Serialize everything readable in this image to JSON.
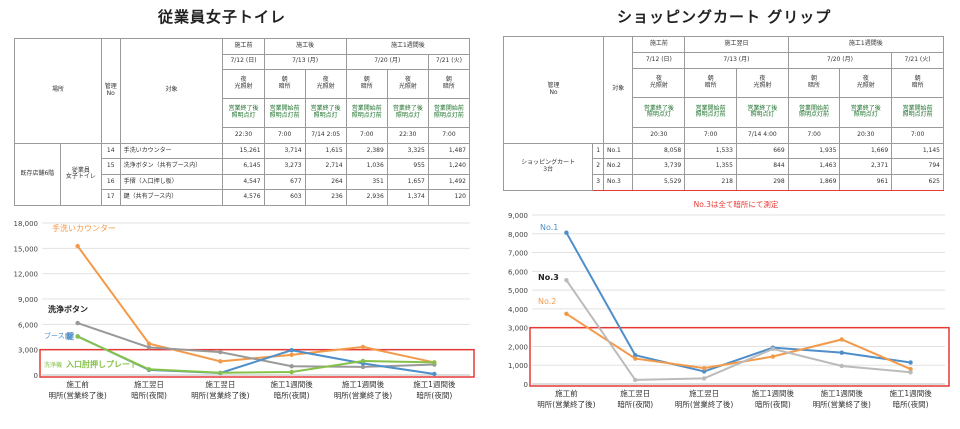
{
  "left": {
    "title": "従業員女子トイレ",
    "table": {
      "h_place": "場所",
      "h_no": "管理\nNo",
      "h_target": "対象",
      "periods": [
        "施工前",
        "施工後",
        "施工1週間後"
      ],
      "dates": [
        "7/12 (日)",
        "7/13 (月)",
        "7/20 (月)",
        "7/21 (火)"
      ],
      "conditions": [
        "夜\n光照射",
        "朝\n暗所",
        "夜\n光照射",
        "朝\n暗所",
        "夜\n光照射",
        "朝\n暗所"
      ],
      "timings": [
        "営業終了後\n照明点灯",
        "営業開始前\n照明点灯前",
        "営業終了後\n照明点灯",
        "営業開始前\n照明点灯前",
        "営業終了後\n照明点灯",
        "営業開始前\n照明点灯前"
      ],
      "times": [
        "22:30",
        "7:00",
        "7/14 2:05",
        "7:00",
        "22:30",
        "7:00"
      ],
      "group_label": "既存店舗6階",
      "sub_label": "従業員\n女子トイレ",
      "rows": [
        {
          "no": "14",
          "target": "手洗いカウンター",
          "values": [
            "15,261",
            "3,714",
            "1,615",
            "2,389",
            "3,325",
            "1,487"
          ]
        },
        {
          "no": "15",
          "target": "洗浄ボタン（共有ブース内）",
          "values": [
            "6,145",
            "3,273",
            "2,714",
            "1,036",
            "955",
            "1,240"
          ]
        },
        {
          "no": "16",
          "target": "手摺（入口押し板）",
          "values": [
            "4,547",
            "677",
            "264",
            "351",
            "1,657",
            "1,492"
          ]
        },
        {
          "no": "17",
          "target": "鍵（共有ブース内）",
          "values": [
            "4,576",
            "603",
            "236",
            "2,936",
            "1,374",
            "120"
          ]
        }
      ]
    }
  },
  "right": {
    "title": "ショッピングカート グリップ",
    "table": {
      "h_no": "管理\nNo",
      "h_target": "対象",
      "periods": [
        "施工前",
        "施工翌日",
        "施工1週間後"
      ],
      "dates": [
        "7/12 (日)",
        "7/13 (月)",
        "7/20 (月)",
        "7/21 (火)"
      ],
      "conditions": [
        "夜\n光照射",
        "朝\n暗所",
        "夜\n光照射",
        "朝\n暗所",
        "夜\n光照射",
        "朝\n暗所"
      ],
      "timings": [
        "営業終了後\n照明点灯",
        "営業開始前\n照明点灯前",
        "営業終了後\n照明点灯",
        "営業開始前\n照明点灯前",
        "営業終了後\n照明点灯",
        "営業開始前\n照明点灯前"
      ],
      "times": [
        "20:30",
        "7:00",
        "7/14 4:00",
        "7:00",
        "20:30",
        "7:00"
      ],
      "group_label": "ショッピングカート\n3台",
      "rows": [
        {
          "no": "1",
          "target": "No.1",
          "values": [
            "8,058",
            "1,533",
            "669",
            "1,935",
            "1,669",
            "1,145"
          ]
        },
        {
          "no": "2",
          "target": "No.2",
          "values": [
            "3,739",
            "1,355",
            "844",
            "1,463",
            "2,371",
            "794"
          ]
        },
        {
          "no": "3",
          "target": "No.3",
          "values": [
            "5,529",
            "218",
            "298",
            "1,869",
            "961",
            "625"
          ]
        }
      ]
    }
  },
  "chart_data": [
    {
      "type": "line",
      "categories": [
        "施工前\n明所(営業終了後)",
        "施工翌日\n暗所(夜間)",
        "施工翌日\n明所(営業終了後)",
        "施工1週間後\n暗所(夜間)",
        "施工1週間後\n明所(営業終了後)",
        "施工1週間後\n暗所(夜間)"
      ],
      "ylim": [
        0,
        18000
      ],
      "yticks": [
        "0",
        "3,000",
        "6,000",
        "9,000",
        "12,000",
        "15,000",
        "18,000"
      ],
      "series": [
        {
          "name": "手洗いカウンター",
          "color": "#f39a4a",
          "values": [
            15261,
            3714,
            1615,
            2389,
            3325,
            1487
          ]
        },
        {
          "name": "洗浄ボタン",
          "color": "#999999",
          "values": [
            6145,
            3273,
            2714,
            1036,
            955,
            1240
          ]
        },
        {
          "name": "ブース内 鍵",
          "color": "#4f8fc9",
          "values": [
            4576,
            603,
            236,
            2936,
            1374,
            120
          ]
        },
        {
          "name": "入口肘押しプレート",
          "color": "#86c24a",
          "values": [
            4547,
            677,
            264,
            351,
            1657,
            1492
          ]
        }
      ],
      "band": {
        "from": 0,
        "to": 3000,
        "color": "#e53935"
      },
      "label_prefix_green": "洗浄機"
    },
    {
      "type": "line",
      "categories": [
        "施工前\n明所(営業終了後)",
        "施工翌日\n暗所(夜間)",
        "施工翌日\n明所(営業終了後)",
        "施工1週間後\n暗所(夜間)",
        "施工1週間後\n明所(営業終了後)",
        "施工1週間後\n暗所(夜間)"
      ],
      "ylim": [
        0,
        9000
      ],
      "yticks": [
        "0",
        "1,000",
        "2,000",
        "3,000",
        "4,000",
        "5,000",
        "6,000",
        "7,000",
        "8,000",
        "9,000"
      ],
      "series": [
        {
          "name": "No.1",
          "color": "#4f8fc9",
          "values": [
            8058,
            1533,
            669,
            1935,
            1669,
            1145
          ]
        },
        {
          "name": "No.2",
          "color": "#f39a4a",
          "values": [
            3739,
            1355,
            844,
            1463,
            2371,
            794
          ]
        },
        {
          "name": "No.3",
          "color": "#bbbbbb",
          "values": [
            5529,
            218,
            298,
            1869,
            961,
            625
          ]
        }
      ],
      "band": {
        "from": 0,
        "to": 3000,
        "color": "#e53935"
      },
      "note": "No.3は全て暗所にて測定"
    }
  ]
}
